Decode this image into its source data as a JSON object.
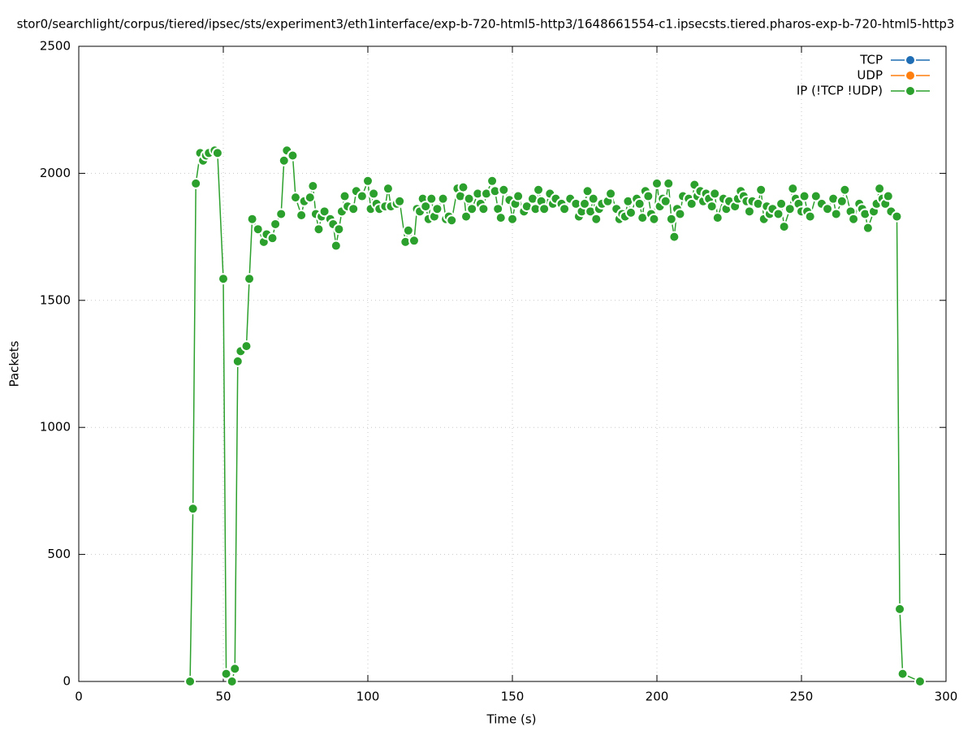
{
  "chart_data": {
    "type": "line",
    "title": "stor0/searchlight/corpus/tiered/ipsec/sts/experiment3/eth1interface/exp-b-720-html5-http3/1648661554-c1.ipsecsts.tiered.pharos-exp-b-720-html5-http3",
    "x_label": "Time (s)",
    "y_label": "Packets",
    "xlim": [
      0,
      300
    ],
    "ylim": [
      0,
      2500
    ],
    "xticks": [
      0,
      50,
      100,
      150,
      200,
      250,
      300
    ],
    "yticks": [
      0,
      500,
      1000,
      1500,
      2000,
      2500
    ],
    "grid": true,
    "legend": "top-right",
    "series": [
      {
        "name": "TCP",
        "color": "#1f6db4",
        "x": [],
        "values": []
      },
      {
        "name": "UDP",
        "color": "#ff7f0e",
        "x": [],
        "values": []
      },
      {
        "name": "IP (!TCP  !UDP)",
        "color": "#2ca02c",
        "x": [
          38.5,
          39.5,
          40.5,
          42,
          43,
          44,
          45,
          47,
          48,
          50,
          51,
          53,
          54,
          55,
          56,
          58,
          59,
          60,
          62,
          64,
          65,
          67,
          68,
          70,
          71,
          72,
          74,
          75,
          77,
          78,
          80,
          81,
          82,
          83,
          84,
          85,
          87,
          88,
          89,
          90,
          91,
          92,
          93,
          95,
          96,
          98,
          100,
          101,
          102,
          103,
          104,
          106,
          107,
          108,
          110,
          111,
          113,
          114,
          116,
          117,
          118,
          119,
          120,
          121,
          122,
          123,
          124,
          126,
          127,
          128,
          129,
          131,
          132,
          133,
          134,
          135,
          136,
          138,
          139,
          140,
          141,
          143,
          144,
          145,
          146,
          147,
          149,
          150,
          151,
          152,
          154,
          155,
          157,
          158,
          159,
          160,
          161,
          163,
          164,
          165,
          167,
          168,
          170,
          172,
          173,
          174,
          175,
          176,
          177,
          178,
          179,
          180,
          181,
          183,
          184,
          186,
          187,
          188,
          189,
          190,
          191,
          193,
          194,
          195,
          196,
          197,
          198,
          199,
          200,
          201,
          202,
          203,
          204,
          205,
          206,
          207,
          208,
          209,
          211,
          212,
          213,
          214,
          215,
          216,
          217,
          218,
          219,
          220,
          221,
          223,
          224,
          225,
          227,
          228,
          229,
          230,
          231,
          232,
          233,
          235,
          236,
          237,
          238,
          239,
          240,
          242,
          243,
          244,
          246,
          247,
          248,
          249,
          250,
          251,
          252,
          253,
          255,
          257,
          259,
          261,
          262,
          264,
          265,
          267,
          268,
          270,
          271,
          272,
          273,
          275,
          276,
          277,
          278,
          279,
          280,
          281,
          283,
          284,
          285,
          291
        ],
        "values": [
          0,
          680,
          1960,
          2080,
          2050,
          2070,
          2080,
          2090,
          2080,
          1585,
          30,
          0,
          50,
          1260,
          1300,
          1320,
          1585,
          1820,
          1780,
          1730,
          1760,
          1745,
          1800,
          1840,
          2050,
          2090,
          2070,
          1905,
          1835,
          1890,
          1905,
          1950,
          1840,
          1780,
          1830,
          1850,
          1820,
          1800,
          1715,
          1780,
          1850,
          1910,
          1870,
          1860,
          1930,
          1910,
          1970,
          1860,
          1920,
          1880,
          1860,
          1870,
          1940,
          1870,
          1880,
          1890,
          1730,
          1775,
          1735,
          1860,
          1850,
          1900,
          1870,
          1820,
          1900,
          1830,
          1860,
          1900,
          1820,
          1830,
          1815,
          1940,
          1910,
          1945,
          1830,
          1900,
          1860,
          1920,
          1880,
          1860,
          1920,
          1970,
          1930,
          1860,
          1825,
          1935,
          1895,
          1820,
          1880,
          1910,
          1850,
          1870,
          1900,
          1860,
          1935,
          1890,
          1860,
          1920,
          1880,
          1900,
          1880,
          1860,
          1900,
          1880,
          1830,
          1850,
          1880,
          1930,
          1850,
          1900,
          1820,
          1860,
          1880,
          1890,
          1920,
          1860,
          1820,
          1840,
          1830,
          1890,
          1845,
          1900,
          1880,
          1825,
          1930,
          1910,
          1840,
          1820,
          1960,
          1870,
          1900,
          1890,
          1960,
          1820,
          1750,
          1860,
          1840,
          1910,
          1900,
          1880,
          1955,
          1910,
          1930,
          1890,
          1920,
          1900,
          1870,
          1920,
          1825,
          1900,
          1860,
          1890,
          1870,
          1900,
          1930,
          1910,
          1890,
          1850,
          1890,
          1880,
          1935,
          1820,
          1870,
          1840,
          1860,
          1840,
          1880,
          1790,
          1860,
          1940,
          1900,
          1880,
          1850,
          1910,
          1850,
          1830,
          1910,
          1880,
          1860,
          1900,
          1840,
          1890,
          1935,
          1850,
          1820,
          1880,
          1860,
          1840,
          1785,
          1850,
          1880,
          1940,
          1900,
          1880,
          1910,
          1850,
          1830,
          285,
          30,
          0
        ]
      }
    ]
  }
}
